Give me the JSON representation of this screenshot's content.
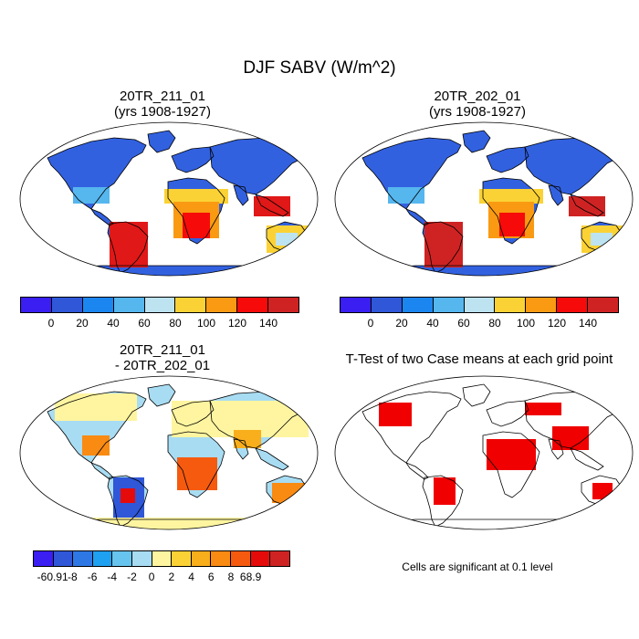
{
  "title": "DJF SABV (W/m^2)",
  "panels": [
    {
      "id": "tl",
      "title_line1": "20TR_211_01",
      "title_line2": "(yrs 1908-1927)"
    },
    {
      "id": "tr",
      "title_line1": "20TR_202_01",
      "title_line2": "(yrs 1908-1927)"
    },
    {
      "id": "bl",
      "title_line1": "20TR_211_01",
      "title_line2": "- 20TR_202_01"
    },
    {
      "id": "br",
      "title_line1": "T-Test of two Case means at each grid point",
      "title_line2": ""
    }
  ],
  "note": "Cells are significant at 0.1 level",
  "colorbar_abs": {
    "colors": [
      "#3a1ef2",
      "#2f57d8",
      "#1b86f0",
      "#56b6ee",
      "#bde3f1",
      "#fbd235",
      "#f99a12",
      "#f70a0a",
      "#cf2323"
    ],
    "ticks": [
      "0",
      "20",
      "40",
      "60",
      "80",
      "100",
      "120",
      "140"
    ]
  },
  "colorbar_diff": {
    "colors": [
      "#3a1ef2",
      "#2f57d8",
      "#2e78e6",
      "#1ea1f0",
      "#66c4ee",
      "#a8dcf2",
      "#fff5a0",
      "#fbd235",
      "#f9ae1c",
      "#f98a12",
      "#f55a0f",
      "#e60b0b",
      "#cf2323"
    ],
    "ticks": [
      "-60.91",
      "-8",
      "-6",
      "-4",
      "-2",
      "0",
      "2",
      "4",
      "6",
      "8",
      "68.9"
    ]
  },
  "chart_data": [
    {
      "type": "heatmap",
      "title": "20TR_211_01 (yrs 1908-1927)",
      "variable": "DJF SABV",
      "units": "W/m^2",
      "levels": [
        0,
        20,
        40,
        60,
        80,
        100,
        120,
        140
      ]
    },
    {
      "type": "heatmap",
      "title": "20TR_202_01 (yrs 1908-1927)",
      "variable": "DJF SABV",
      "units": "W/m^2",
      "levels": [
        0,
        20,
        40,
        60,
        80,
        100,
        120,
        140
      ]
    },
    {
      "type": "heatmap",
      "title": "20TR_211_01 - 20TR_202_01",
      "variable": "DJF SABV difference",
      "units": "W/m^2",
      "levels": [
        -60.91,
        -8,
        -6,
        -4,
        -2,
        0,
        2,
        4,
        6,
        8,
        68.9
      ]
    },
    {
      "type": "heatmap",
      "title": "T-Test of two Case means at each grid point",
      "note": "Cells are significant at 0.1 level"
    }
  ]
}
